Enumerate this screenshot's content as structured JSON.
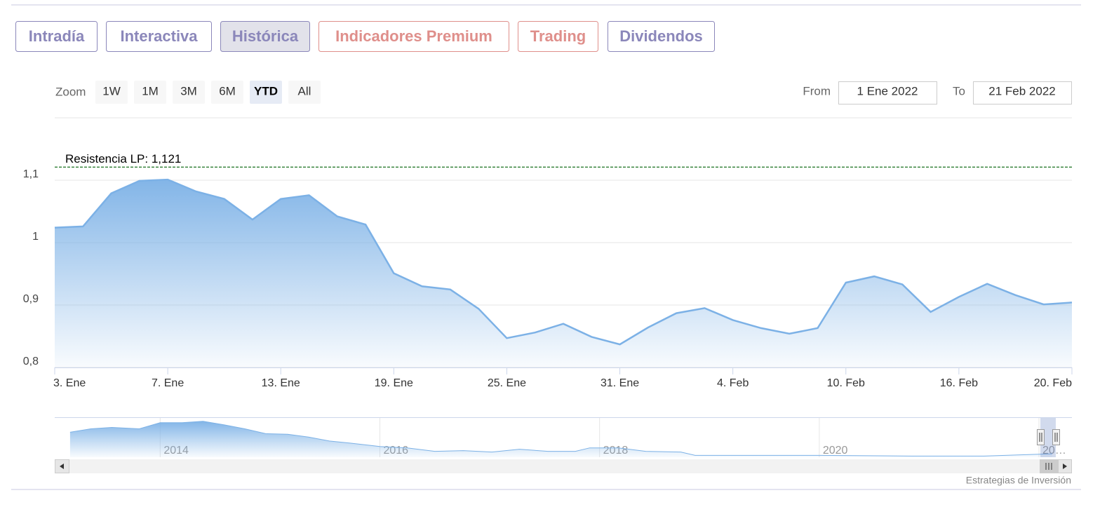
{
  "tabs": [
    {
      "label": "Intradía",
      "color": "#8b87ba"
    },
    {
      "label": "Interactiva",
      "color": "#8b87ba"
    },
    {
      "label": "Histórica",
      "color": "#8b87ba"
    },
    {
      "label": "Indicadores Premium",
      "color": "#df8f8b"
    },
    {
      "label": "Trading",
      "color": "#df8f8b"
    },
    {
      "label": "Dividendos",
      "color": "#8b87ba"
    }
  ],
  "active_tab": 2,
  "range_selector": {
    "zoom_label": "Zoom",
    "buttons": [
      "1W",
      "1M",
      "3M",
      "6M",
      "YTD",
      "All"
    ],
    "selected_button": 4,
    "from_label": "From",
    "from_value": "1 Ene 2022",
    "to_label": "To",
    "to_value": "21 Feb 2022"
  },
  "chart_data": [
    {
      "type": "area",
      "color": "#7cb1e6",
      "categories": [
        "3. Ene",
        null,
        null,
        null,
        "7. Ene",
        null,
        null,
        null,
        "13. Ene",
        null,
        null,
        null,
        "19. Ene",
        null,
        null,
        null,
        "25. Ene",
        null,
        null,
        null,
        "31. Ene",
        null,
        null,
        null,
        "4. Feb",
        null,
        null,
        null,
        "10. Feb",
        null,
        null,
        null,
        "16. Feb",
        null,
        null,
        null,
        "20. Feb"
      ],
      "values": [
        1.024,
        1.026,
        1.079,
        1.099,
        1.101,
        1.082,
        1.07,
        1.037,
        1.07,
        1.076,
        1.042,
        1.029,
        0.951,
        0.93,
        0.925,
        0.894,
        0.847,
        0.856,
        0.87,
        0.849,
        0.837,
        0.864,
        0.887,
        0.895,
        0.876,
        0.863,
        0.854,
        0.863,
        0.936,
        0.946,
        0.933,
        0.889,
        0.913,
        0.934,
        0.916,
        0.901,
        0.904
      ],
      "ylim": [
        0.8,
        1.2
      ],
      "yticks": [
        {
          "value": 0.8,
          "label": "0,8"
        },
        {
          "value": 0.9,
          "label": "0,9"
        },
        1,
        {
          "value": 1.1,
          "label": "1,1"
        }
      ],
      "grid": true,
      "plot_line": {
        "value": 1.121,
        "label": "Resistencia LP: 1,121",
        "color": "#2e7d32"
      }
    },
    {
      "type": "area",
      "color": "#7cb1e6",
      "x": [
        2013.18,
        2013.37,
        2013.56,
        2013.81,
        2014.0,
        2014.2,
        2014.39,
        2014.58,
        2014.77,
        2014.96,
        2015.16,
        2015.35,
        2015.54,
        2015.73,
        2016.0,
        2016.25,
        2016.5,
        2016.76,
        2017.02,
        2017.27,
        2017.53,
        2017.78,
        2017.91,
        2018.17,
        2018.42,
        2018.74,
        2018.87,
        2019.25,
        2020.0,
        2020.84,
        2021.5,
        2022.12
      ],
      "values": [
        2.76,
        3.06,
        3.18,
        3.06,
        3.59,
        3.59,
        3.71,
        3.41,
        3.06,
        2.64,
        2.59,
        2.35,
        2.0,
        1.82,
        1.53,
        1.41,
        1.11,
        1.17,
        1.05,
        1.29,
        1.11,
        1.11,
        1.41,
        1.41,
        1.11,
        1.05,
        0.76,
        0.76,
        0.76,
        0.7,
        0.7,
        0.9
      ],
      "xlim": [
        2013.04,
        2022.3
      ],
      "ylim": [
        0.6,
        4.0
      ],
      "xticks": [
        2014,
        2016,
        2018,
        2020,
        {
          "value": 2022,
          "label": "20…"
        }
      ]
    }
  ],
  "credits": "Estrategias de Inversión"
}
